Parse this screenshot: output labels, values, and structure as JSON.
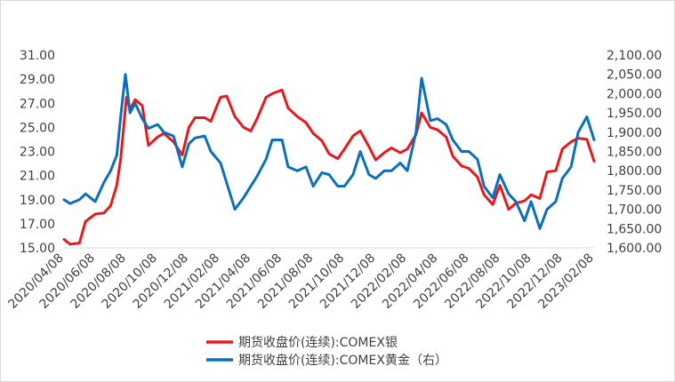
{
  "chart_data": {
    "type": "line",
    "x_tick_labels": [
      "2020/04/08",
      "2020/06/08",
      "2020/08/08",
      "2020/10/08",
      "2020/12/08",
      "2021/02/08",
      "2021/04/08",
      "2021/06/08",
      "2021/08/08",
      "2021/10/08",
      "2021/12/08",
      "2022/02/08",
      "2022/04/08",
      "2022/06/08",
      "2022/08/08",
      "2022/10/08",
      "2022/12/08",
      "2023/02/08"
    ],
    "y_left": {
      "ylim": [
        15,
        31
      ],
      "tick_labels": [
        "15.00",
        "17.00",
        "19.00",
        "21.00",
        "23.00",
        "25.00",
        "27.00",
        "29.00",
        "31.00"
      ]
    },
    "y_right": {
      "ylim": [
        1600,
        2100
      ],
      "tick_labels": [
        "1,600.00",
        "1,650.00",
        "1,700.00",
        "1,750.00",
        "1,800.00",
        "1,850.00",
        "1,900.00",
        "1,950.00",
        "2,000.00",
        "2,050.00",
        "2,100.00"
      ]
    },
    "grid": false,
    "legend_position": "bottom",
    "series": [
      {
        "name": "期货收盘价(连续):COMEX银",
        "axis": "left",
        "color": "#e8191d",
        "x": [
          "2020/04/08",
          "2020/04/20",
          "2020/05/08",
          "2020/05/20",
          "2020/06/08",
          "2020/06/25",
          "2020/07/08",
          "2020/07/20",
          "2020/07/28",
          "2020/08/08",
          "2020/08/15",
          "2020/08/25",
          "2020/09/08",
          "2020/09/20",
          "2020/10/08",
          "2020/10/20",
          "2020/11/08",
          "2020/11/25",
          "2020/12/08",
          "2020/12/20",
          "2021/01/08",
          "2021/01/20",
          "2021/02/01",
          "2021/02/08",
          "2021/02/20",
          "2021/03/08",
          "2021/03/25",
          "2021/04/08",
          "2021/04/20",
          "2021/05/08",
          "2021/05/20",
          "2021/06/08",
          "2021/06/20",
          "2021/07/08",
          "2021/07/25",
          "2021/08/08",
          "2021/08/25",
          "2021/09/08",
          "2021/09/25",
          "2021/10/08",
          "2021/10/25",
          "2021/11/08",
          "2021/11/25",
          "2021/12/08",
          "2021/12/25",
          "2022/01/08",
          "2022/01/25",
          "2022/02/08",
          "2022/02/25",
          "2022/03/08",
          "2022/03/25",
          "2022/04/08",
          "2022/04/25",
          "2022/05/08",
          "2022/05/25",
          "2022/06/08",
          "2022/06/25",
          "2022/07/08",
          "2022/07/25",
          "2022/08/08",
          "2022/08/25",
          "2022/09/08",
          "2022/09/25",
          "2022/10/08",
          "2022/10/25",
          "2022/11/08",
          "2022/11/25",
          "2022/12/08",
          "2022/12/25",
          "2023/01/08",
          "2023/01/25",
          "2023/02/08"
        ],
        "values": [
          15.7,
          15.3,
          15.4,
          17.2,
          17.8,
          17.9,
          18.5,
          20.2,
          22.5,
          27.5,
          26.5,
          27.3,
          26.8,
          23.5,
          24.2,
          24.5,
          23.8,
          22.7,
          25.0,
          25.8,
          25.8,
          25.5,
          26.8,
          27.5,
          27.6,
          25.9,
          25.0,
          24.7,
          25.7,
          27.5,
          27.8,
          28.1,
          26.6,
          25.9,
          25.4,
          24.5,
          23.9,
          22.8,
          22.4,
          23.2,
          24.3,
          24.7,
          23.4,
          22.3,
          22.9,
          23.3,
          22.9,
          23.2,
          24.4,
          26.2,
          25.0,
          24.8,
          24.2,
          22.6,
          21.8,
          21.6,
          20.9,
          19.4,
          18.6,
          20.2,
          18.2,
          18.7,
          18.9,
          19.4,
          19.1,
          21.3,
          21.4,
          23.2,
          23.8,
          24.1,
          24.0,
          22.2
        ]
      },
      {
        "name": "期货收盘价(连续):COMEX黄金（右）",
        "axis": "right",
        "color": "#0b6fbd",
        "x": [
          "2020/04/08",
          "2020/04/20",
          "2020/05/08",
          "2020/05/20",
          "2020/06/08",
          "2020/06/25",
          "2020/07/08",
          "2020/07/20",
          "2020/07/28",
          "2020/08/06",
          "2020/08/15",
          "2020/08/25",
          "2020/09/08",
          "2020/09/20",
          "2020/10/08",
          "2020/10/20",
          "2020/11/08",
          "2020/11/25",
          "2020/12/08",
          "2020/12/20",
          "2021/01/08",
          "2021/01/20",
          "2021/02/08",
          "2021/03/08",
          "2021/03/25",
          "2021/04/08",
          "2021/04/20",
          "2021/05/08",
          "2021/05/20",
          "2021/06/08",
          "2021/06/20",
          "2021/07/08",
          "2021/07/25",
          "2021/08/08",
          "2021/08/25",
          "2021/09/08",
          "2021/09/25",
          "2021/10/08",
          "2021/10/25",
          "2021/11/08",
          "2021/11/25",
          "2021/12/08",
          "2021/12/25",
          "2022/01/08",
          "2022/01/25",
          "2022/02/08",
          "2022/02/25",
          "2022/03/08",
          "2022/03/25",
          "2022/04/08",
          "2022/04/25",
          "2022/05/08",
          "2022/05/25",
          "2022/06/08",
          "2022/06/25",
          "2022/07/08",
          "2022/07/25",
          "2022/08/08",
          "2022/08/25",
          "2022/09/08",
          "2022/09/25",
          "2022/10/08",
          "2022/10/25",
          "2022/11/08",
          "2022/11/25",
          "2022/12/08",
          "2022/12/25",
          "2023/01/08",
          "2023/01/25",
          "2023/02/08"
        ],
        "values": [
          1725,
          1715,
          1725,
          1740,
          1720,
          1770,
          1800,
          1840,
          1945,
          2050,
          1950,
          1975,
          1935,
          1910,
          1920,
          1900,
          1890,
          1810,
          1870,
          1885,
          1890,
          1850,
          1820,
          1700,
          1730,
          1760,
          1785,
          1830,
          1880,
          1880,
          1810,
          1800,
          1810,
          1760,
          1795,
          1790,
          1760,
          1760,
          1790,
          1850,
          1790,
          1780,
          1800,
          1800,
          1820,
          1800,
          1900,
          2040,
          1930,
          1935,
          1920,
          1880,
          1850,
          1850,
          1830,
          1760,
          1730,
          1790,
          1740,
          1720,
          1670,
          1720,
          1650,
          1700,
          1720,
          1780,
          1810,
          1900,
          1940,
          1880
        ]
      }
    ]
  }
}
